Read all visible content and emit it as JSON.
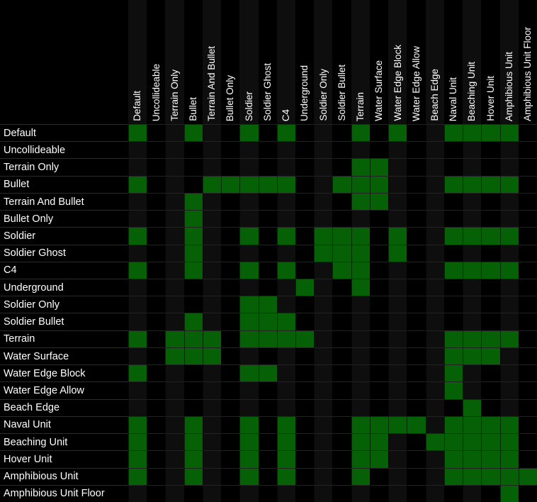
{
  "layers": [
    "Default",
    "Uncollideable",
    "Terrain Only",
    "Bullet",
    "Terrain And Bullet",
    "Bullet Only",
    "Soldier",
    "Soldier Ghost",
    "C4",
    "Underground",
    "Soldier Only",
    "Soldier Bullet",
    "Terrain",
    "Water Surface",
    "Water Edge Block",
    "Water Edge Allow",
    "Beach Edge",
    "Naval Unit",
    "Beaching Unit",
    "Hover Unit",
    "Amphibious Unit",
    "Amphibious Unit Floor"
  ],
  "matrix": [
    "1001001010001010011110",
    "0000000000000000000000",
    "0000000000001100000000",
    "1000111110011100011110",
    "0001000000001100000000",
    "0001000000000000000000",
    "1001001010111010011110",
    "0001000000111010000000",
    "1001001010011000011110",
    "0000000001001000000000",
    "0000001100000000000000",
    "0001001110000000000000",
    "1011101111000000011110",
    "0011100000000000011100",
    "1000001100000000010000",
    "0000000000000000010000",
    "0000000000000000001000",
    "1001001010001111011110",
    "1001001010001100111110",
    "1001001010001100011110",
    "1001001010001000011111",
    "0000000000000000000010"
  ],
  "colors": {
    "enabled_cell": "#066106",
    "background": "#000000",
    "column_stripe": "#0e0e0e",
    "row_separator": "#2a2a2a",
    "grid_row_separator": "#222222",
    "text": "#ffffff"
  }
}
